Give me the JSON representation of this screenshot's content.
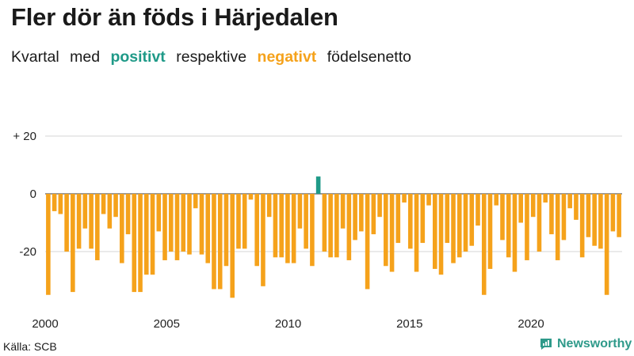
{
  "title": "Fler dör än föds i Härjedalen",
  "subtitle": {
    "prefix": "Kvartal med",
    "positive": "positivt",
    "middle": "respektive",
    "negative": "negativt",
    "suffix": "födelsenetto"
  },
  "colors": {
    "positive": "#1f9a88",
    "negative": "#f5a21b",
    "text": "#1a1a1a",
    "brand": "#2f9a8a"
  },
  "source": "Källa: SCB",
  "brand": {
    "name": "Newsworthy",
    "icon": "bar-chart-bubble-icon"
  },
  "chart_data": {
    "type": "bar",
    "title": "",
    "xlabel": "",
    "ylabel": "",
    "ylim": [
      -37,
      20
    ],
    "xlim": [
      2000,
      2023.75
    ],
    "yticks": [
      20,
      0,
      -20
    ],
    "ytick_labels": [
      "+ 20",
      "0",
      "-20"
    ],
    "xticks": [
      2000,
      2005,
      2010,
      2015,
      2020
    ],
    "xtick_labels": [
      "2000",
      "2005",
      "2010",
      "2015",
      "2020"
    ],
    "grid": "horizontal",
    "legend": "none",
    "series": [
      {
        "start_year": 2000,
        "periods_per_year": 4,
        "values": [
          -35,
          -6,
          -7,
          -20,
          -34,
          -19,
          -12,
          -19,
          -23,
          -7,
          -12,
          -8,
          -24,
          -14,
          -34,
          -34,
          -28,
          -28,
          -13,
          -23,
          -20,
          -23,
          -20,
          -21,
          -5,
          -21,
          -24,
          -33,
          -33,
          -25,
          -36,
          -19,
          -19,
          -2,
          -25,
          -32,
          -8,
          -22,
          -22,
          -24,
          -24,
          -12,
          -19,
          -25,
          6,
          -20,
          -22,
          -22,
          -12,
          -23,
          -16,
          -13,
          -33,
          -14,
          -8,
          -25,
          -27,
          -17,
          -3,
          -19,
          -27,
          -17,
          -4,
          -26,
          -28,
          -17,
          -24,
          -22,
          -20,
          -18,
          -11,
          -35,
          -26,
          -4,
          -16,
          -22,
          -27,
          -10,
          -23,
          -8,
          -20,
          -3,
          -14,
          -23,
          -16,
          -5,
          -9,
          -22,
          -15,
          -18,
          -19,
          -35,
          -13,
          -15
        ]
      }
    ]
  }
}
